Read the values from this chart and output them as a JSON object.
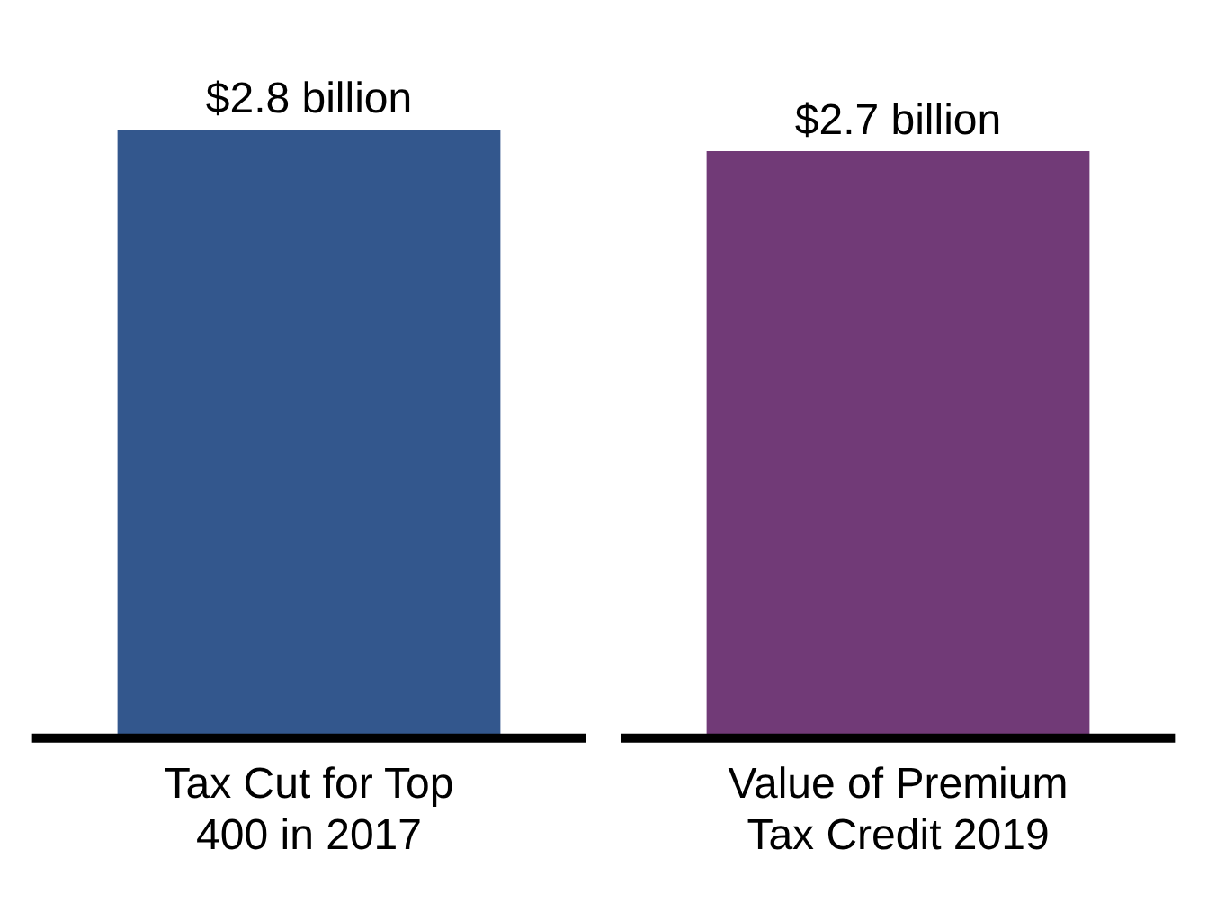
{
  "chart_data": {
    "type": "bar",
    "categories": [
      "Tax Cut for Top 400 in 2017",
      "Value of Premium Tax Credit 2019"
    ],
    "values": [
      2.8,
      2.7
    ],
    "colors": [
      "#33578d",
      "#713a77"
    ],
    "value_labels": [
      "$2.8 billion",
      "$2.7 billion"
    ],
    "grid": false,
    "legend": false
  }
}
